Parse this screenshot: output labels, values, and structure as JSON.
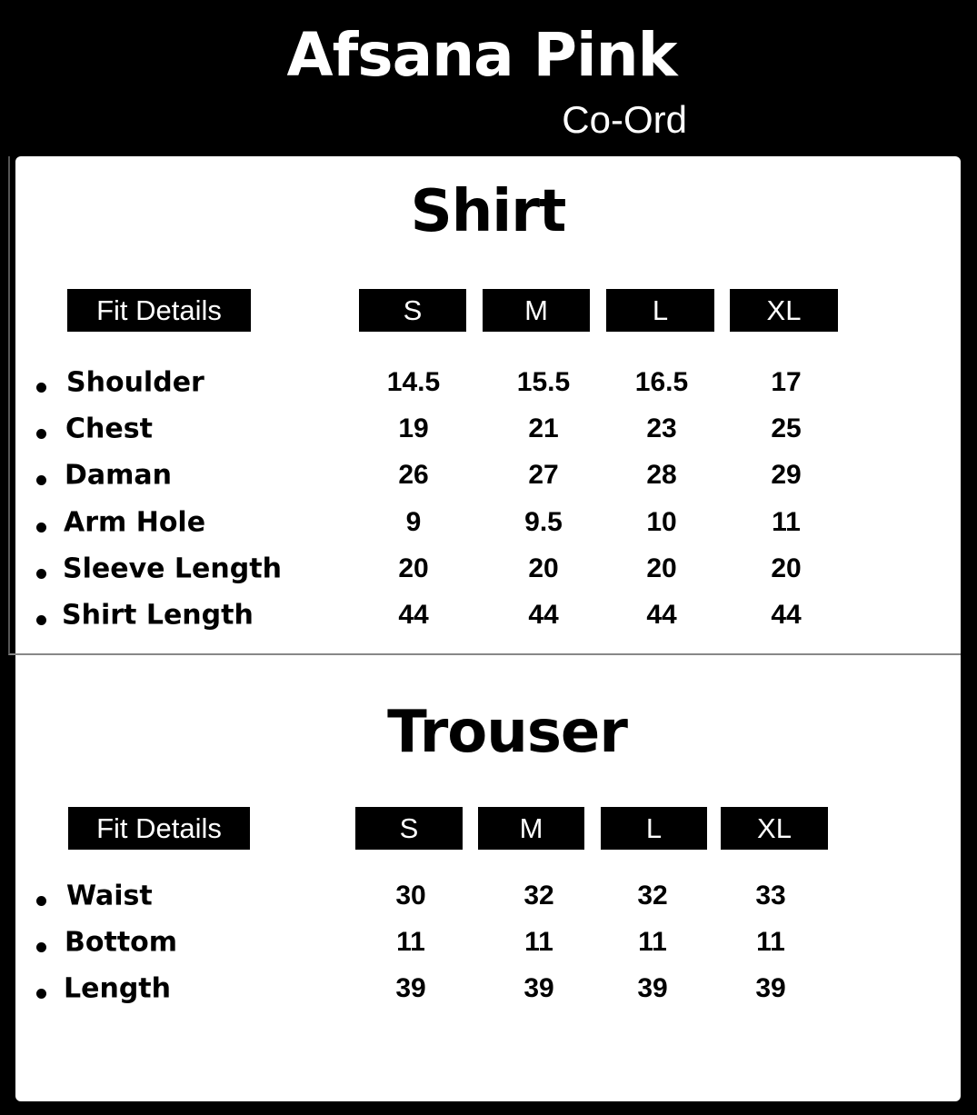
{
  "header": {
    "title": "Afsana Pink",
    "subtitle": "Co-Ord"
  },
  "shirt": {
    "title": "Shirt",
    "fit_label": "Fit Details",
    "sizes": [
      "S",
      "M",
      "L",
      "XL"
    ],
    "rows": [
      {
        "label": "Shoulder",
        "values": [
          "14.5",
          "15.5",
          "16.5",
          "17"
        ]
      },
      {
        "label": "Chest",
        "values": [
          "19",
          "21",
          "23",
          "25"
        ]
      },
      {
        "label": "Daman",
        "values": [
          "26",
          "27",
          "28",
          "29"
        ]
      },
      {
        "label": "Arm Hole",
        "values": [
          "9",
          "9.5",
          "10",
          "11"
        ]
      },
      {
        "label": "Sleeve Length",
        "values": [
          "20",
          "20",
          "20",
          "20"
        ]
      },
      {
        "label": "Shirt Length",
        "values": [
          "44",
          "44",
          "44",
          "44"
        ]
      }
    ]
  },
  "trouser": {
    "title": "Trouser",
    "fit_label": "Fit Details",
    "sizes": [
      "S",
      "M",
      "L",
      "XL"
    ],
    "rows": [
      {
        "label": "Waist",
        "values": [
          "30",
          "32",
          "32",
          "33"
        ]
      },
      {
        "label": "Bottom",
        "values": [
          "11",
          "11",
          "11",
          "11"
        ]
      },
      {
        "label": "Length",
        "values": [
          "39",
          "39",
          "39",
          "39"
        ]
      }
    ]
  }
}
